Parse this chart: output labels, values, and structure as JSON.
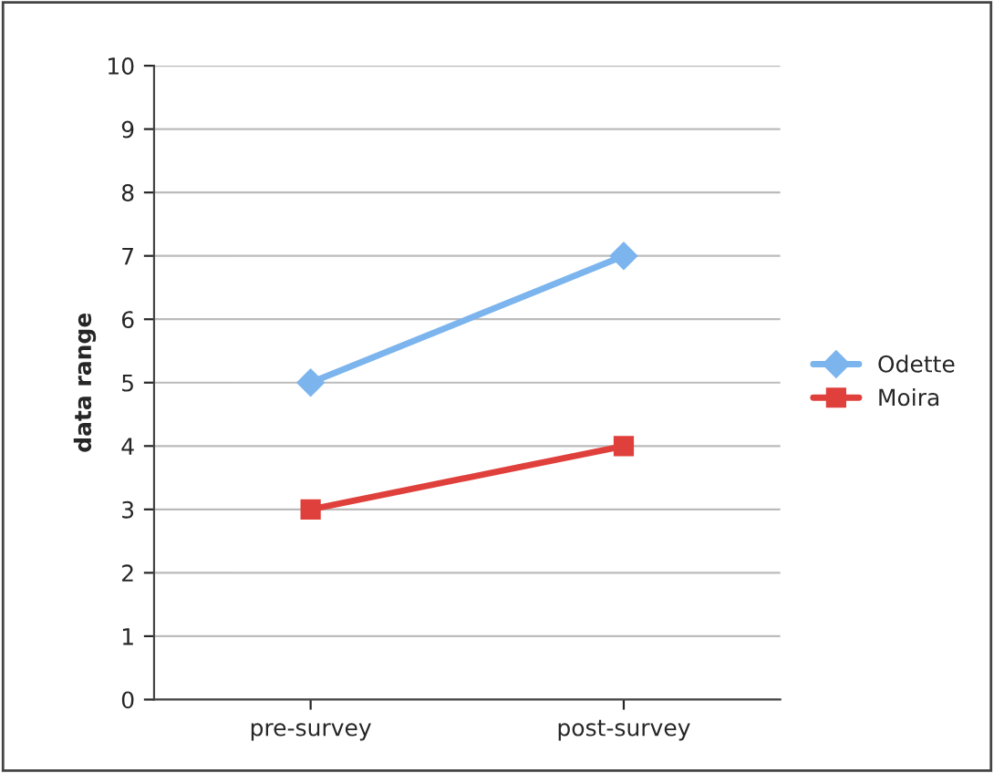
{
  "chart_data": {
    "type": "line",
    "ylabel": "data range",
    "categories": [
      "pre-survey",
      "post-survey"
    ],
    "series": [
      {
        "name": "Odette",
        "color": "#7cb4ee",
        "values": [
          5,
          7
        ],
        "marker": "diamond"
      },
      {
        "name": "Moira",
        "color": "#e0403c",
        "values": [
          3,
          4
        ],
        "marker": "square"
      }
    ],
    "ylim": [
      0,
      10
    ],
    "yticks": [
      0,
      1,
      2,
      3,
      4,
      5,
      6,
      7,
      8,
      9,
      10
    ],
    "grid": "y",
    "legend": "right",
    "line_style": "solid"
  }
}
